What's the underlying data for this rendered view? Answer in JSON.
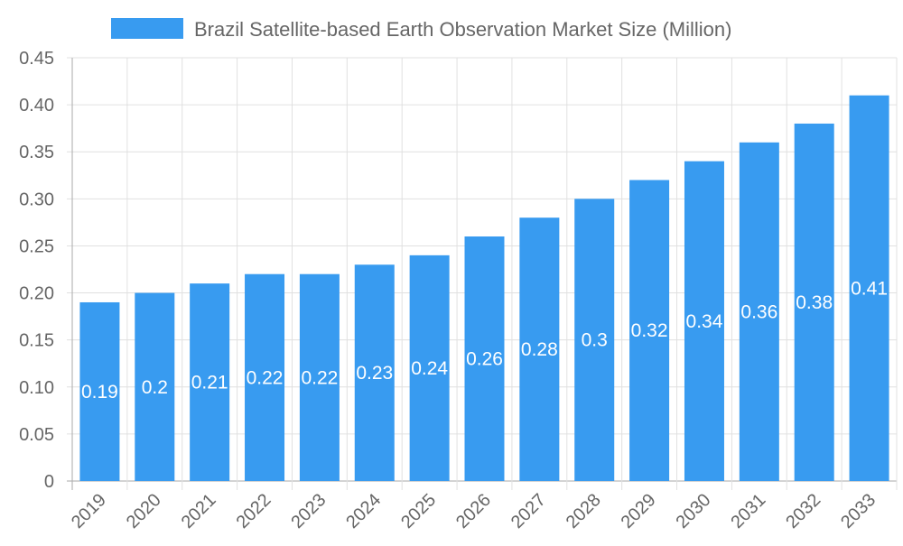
{
  "chart_data": {
    "type": "bar",
    "title": "",
    "xlabel": "",
    "ylabel": "",
    "categories": [
      "2019",
      "2020",
      "2021",
      "2022",
      "2023",
      "2024",
      "2025",
      "2026",
      "2027",
      "2028",
      "2029",
      "2030",
      "2031",
      "2032",
      "2033"
    ],
    "series": [
      {
        "name": "Brazil Satellite-based Earth Observation Market Size (Million)",
        "values": [
          0.19,
          0.2,
          0.21,
          0.22,
          0.22,
          0.23,
          0.24,
          0.26,
          0.28,
          0.3,
          0.32,
          0.34,
          0.36,
          0.38,
          0.41
        ],
        "data_labels": [
          "0.19",
          "0.2",
          "0.21",
          "0.22",
          "0.22",
          "0.23",
          "0.24",
          "0.26",
          "0.28",
          "0.3",
          "0.32",
          "0.34",
          "0.36",
          "0.38",
          "0.41"
        ]
      }
    ],
    "ylim": [
      0,
      0.45
    ],
    "yticks": [
      "0",
      "0.05",
      "0.10",
      "0.15",
      "0.20",
      "0.25",
      "0.30",
      "0.35",
      "0.40",
      "0.45"
    ],
    "grid": true,
    "legend": "top",
    "colors": {
      "bar": "#389bf0",
      "grid": "#e0e0e0",
      "axis": "#aaaaaa",
      "text": "#666666",
      "label": "#ffffff"
    }
  }
}
